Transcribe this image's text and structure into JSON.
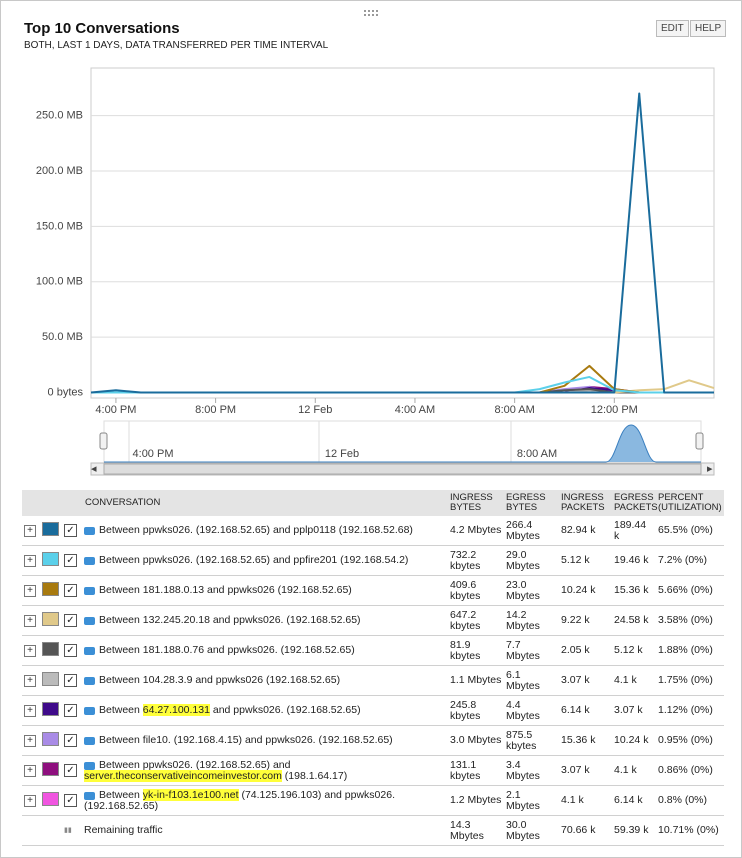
{
  "header": {
    "title": "Top 10 Conversations",
    "subtitle": "BOTH, LAST 1 DAYS, DATA TRANSFERRED PER TIME INTERVAL",
    "buttons": [
      "EDIT",
      "HELP"
    ]
  },
  "chart_data": {
    "type": "line",
    "categories": [
      null,
      "4:00 PM",
      null,
      null,
      null,
      "8:00 PM",
      null,
      null,
      null,
      "12 Feb",
      null,
      null,
      null,
      "4:00 AM",
      null,
      null,
      null,
      "8:00 AM",
      null,
      null,
      null,
      "12:00 PM",
      null,
      null,
      null,
      null
    ],
    "series": [
      {
        "color": "#1a6c9c",
        "values": [
          0,
          2,
          0,
          0,
          0,
          0,
          0,
          0,
          0,
          0,
          0,
          0,
          0,
          0,
          0,
          0,
          0,
          0,
          0,
          0,
          0,
          0,
          270,
          0,
          0,
          0
        ]
      },
      {
        "color": "#5bd0ea",
        "values": [
          0,
          0,
          0,
          0,
          0,
          0,
          0,
          0,
          0,
          0,
          0,
          0,
          0,
          0,
          0,
          0,
          0,
          0,
          3,
          9,
          14,
          2,
          0,
          0,
          0,
          0
        ]
      },
      {
        "color": "#a87a0f",
        "values": [
          0,
          0,
          0,
          0,
          0,
          0,
          0,
          0,
          0,
          0,
          0,
          0,
          0,
          0,
          0,
          0,
          0,
          0,
          0,
          6,
          24,
          3,
          0,
          0,
          0,
          0
        ]
      },
      {
        "color": "#e0c98a",
        "values": [
          0,
          0,
          0,
          0,
          0,
          0,
          0,
          0,
          0,
          0,
          0,
          0,
          0,
          0,
          0,
          0,
          0,
          0,
          0,
          0,
          0,
          0,
          2,
          3,
          11,
          4
        ]
      },
      {
        "color": "#555555",
        "values": [
          0,
          0,
          0,
          0,
          0,
          0,
          0,
          0,
          0,
          0,
          0,
          0,
          0,
          0,
          0,
          0,
          0,
          0,
          0,
          2,
          3,
          0,
          0,
          0,
          0,
          0
        ]
      },
      {
        "color": "#bbbbbb",
        "values": [
          0,
          0,
          0,
          0,
          0,
          0,
          0,
          0,
          0,
          0,
          0,
          0,
          0,
          0,
          0,
          0,
          0,
          0,
          0,
          0,
          2,
          0,
          0,
          0,
          0,
          0
        ]
      },
      {
        "color": "#3f0a8a",
        "values": [
          0,
          0,
          0,
          0,
          0,
          0,
          0,
          0,
          0,
          0,
          0,
          0,
          0,
          0,
          0,
          0,
          0,
          0,
          0,
          0,
          4,
          2,
          0,
          0,
          0,
          0
        ]
      },
      {
        "color": "#a98be6",
        "values": [
          0,
          0,
          0,
          0,
          0,
          0,
          0,
          0,
          0,
          0,
          0,
          0,
          0,
          0,
          0,
          0,
          0,
          0,
          0,
          3,
          5,
          0,
          0,
          0,
          0,
          0
        ]
      },
      {
        "color": "#8e0f7e",
        "values": [
          0,
          0,
          0,
          0,
          0,
          0,
          0,
          0,
          0,
          0,
          0,
          0,
          0,
          0,
          0,
          0,
          0,
          0,
          0,
          0,
          5,
          3,
          0,
          0,
          0,
          0
        ]
      },
      {
        "color": "#f055e0",
        "values": [
          0,
          0,
          0,
          0,
          0,
          0,
          0,
          0,
          0,
          0,
          0,
          0,
          0,
          0,
          0,
          0,
          0,
          0,
          0,
          0,
          0,
          0,
          0,
          0,
          0,
          0
        ]
      }
    ],
    "ylim": [
      -5,
      293
    ],
    "yticks": [
      {
        "value": 0,
        "label": "0 bytes"
      },
      {
        "value": 50,
        "label": "50.0 MB"
      },
      {
        "value": 100,
        "label": "100.0 MB"
      },
      {
        "value": 150,
        "label": "150.0 MB"
      },
      {
        "value": 200,
        "label": "200.0 MB"
      },
      {
        "value": 250,
        "label": "250.0 MB"
      }
    ],
    "grid": true
  },
  "navigator": {
    "labels": [
      "4:00 PM",
      "12 Feb",
      "8:00 AM"
    ]
  },
  "table": {
    "columns": [
      "CONVERSATION",
      "INGRESS BYTES",
      "EGRESS BYTES",
      "INGRESS PACKETS",
      "EGRESS PACKETS",
      "PERCENT (UTILIZATION)"
    ],
    "rows": [
      {
        "conversation": [
          "Between ppwks026.",
          "(192.168.52.65) and pplp0118",
          "(192.168.52.68)"
        ],
        "cells": [
          "4.2 Mbytes",
          "266.4 Mbytes",
          "82.94 k",
          "189.44 k",
          "65.5% (0%)"
        ]
      },
      {
        "conversation": [
          "Between ppwks026.",
          "(192.168.52.65) and ppfire201",
          "(192.168.54.2)"
        ],
        "cells": [
          "732.2 kbytes",
          "29.0 Mbytes",
          "5.12 k",
          "19.46 k",
          "7.2% (0%)"
        ]
      },
      {
        "conversation": [
          "Between 181.188.0.13 and ppwks026",
          "(192.168.52.65)"
        ],
        "cells": [
          "409.6 kbytes",
          "23.0 Mbytes",
          "10.24 k",
          "15.36 k",
          "5.66% (0%)"
        ]
      },
      {
        "conversation": [
          "Between 132.245.20.18 and ppwks026.",
          "(192.168.52.65)"
        ],
        "cells": [
          "647.2 kbytes",
          "14.2 Mbytes",
          "9.22 k",
          "24.58 k",
          "3.58% (0%)"
        ]
      },
      {
        "conversation": [
          "Between 181.188.0.76 and ppwks026.",
          "(192.168.52.65)"
        ],
        "cells": [
          "81.9 kbytes",
          "7.7 Mbytes",
          "2.05 k",
          "5.12 k",
          "1.88% (0%)"
        ]
      },
      {
        "conversation": [
          "Between 104.28.3.9 and ppwks026",
          "(192.168.52.65)"
        ],
        "cells": [
          "1.1 Mbytes",
          "6.1 Mbytes",
          "3.07 k",
          "4.1 k",
          "1.75% (0%)"
        ]
      },
      {
        "conversation": [
          "Between",
          "64.27.100.131",
          "and ppwks026.",
          "(192.168.52.65)"
        ],
        "highlight": 1,
        "cells": [
          "245.8 kbytes",
          "4.4 Mbytes",
          "6.14 k",
          "3.07 k",
          "1.12% (0%)"
        ]
      },
      {
        "conversation": [
          "Between",
          "file10.",
          "(192.168.4.15) and ppwks026.",
          "(192.168.52.65)"
        ],
        "cells": [
          "3.0 Mbytes",
          "875.5 kbytes",
          "15.36 k",
          "10.24 k",
          "0.95% (0%)"
        ]
      },
      {
        "conversation": [
          "Between ppwks026.",
          "(192.168.52.65) and",
          "server.theconservativeincomeinvestor.com",
          "(198.1.64.17)"
        ],
        "highlight": 2,
        "cells": [
          "131.1 kbytes",
          "3.4 Mbytes",
          "3.07 k",
          "4.1 k",
          "0.86% (0%)"
        ]
      },
      {
        "conversation": [
          "Between",
          "yk-in-f103.1e100.net",
          "(74.125.196.103) and",
          "ppwks026.",
          "(192.168.52.65)"
        ],
        "highlight": 1,
        "cells": [
          "1.2 Mbytes",
          "2.1 Mbytes",
          "4.1 k",
          "6.14 k",
          "0.8% (0%)"
        ]
      }
    ],
    "remaining": {
      "label": "Remaining traffic",
      "cells": [
        "14.3 Mbytes",
        "30.0 Mbytes",
        "70.66 k",
        "59.39 k",
        "10.71% (0%)"
      ]
    }
  }
}
